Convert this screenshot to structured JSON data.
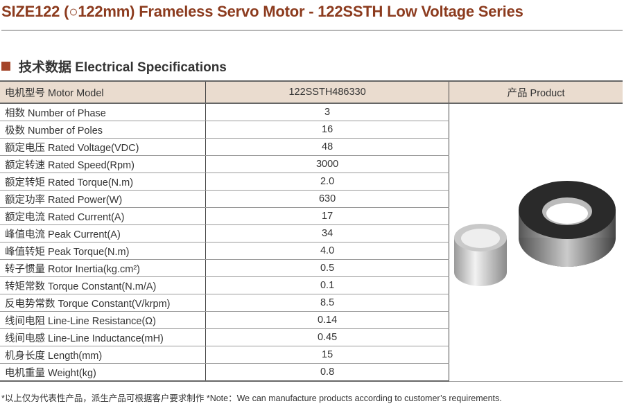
{
  "title": "SIZE122 (○122mm) Frameless Servo Motor - 122SSTH Low Voltage Series",
  "section": "技术数据 Electrical Specifications",
  "table": {
    "header": [
      "电机型号 Motor Model",
      "122SSTH486330",
      "产品 Product"
    ],
    "rows": [
      [
        "相数 Number of Phase",
        "3"
      ],
      [
        "极数 Number of Poles",
        "16"
      ],
      [
        "额定电压 Rated Voltage(VDC)",
        "48"
      ],
      [
        "额定转速 Rated Speed(Rpm)",
        "3000"
      ],
      [
        "额定转矩 Rated Torque(N.m)",
        "2.0"
      ],
      [
        "额定功率 Rated Power(W)",
        "630"
      ],
      [
        "额定电流 Rated Current(A)",
        "17"
      ],
      [
        "峰值电流 Peak Current(A)",
        "34"
      ],
      [
        "峰值转矩 Peak Torque(N.m)",
        "4.0"
      ],
      [
        "转子惯量 Rotor Inertia(kg.cm²)",
        "0.5"
      ],
      [
        "转矩常数 Torque Constant(N.m/A)",
        "0.1"
      ],
      [
        "反电势常数 Torque Constant(V/krpm)",
        "8.5"
      ],
      [
        "线间电阻 Line-Line Resistance(Ω)",
        "0.14"
      ],
      [
        "线间电感 Line-Line Inductance(mH)",
        "0.45"
      ],
      [
        "机身长度 Length(mm)",
        "15"
      ],
      [
        "电机重量 Weight(kg)",
        "0.8"
      ]
    ]
  },
  "note": "*以上仅为代表性产品，派生产品可根据客户要求制作   *Note：We can manufacture products according to customer’s requirements.",
  "colors": {
    "title": "#8c3b1e",
    "header_bg": "#eadccf",
    "bullet": "#a4452a"
  }
}
